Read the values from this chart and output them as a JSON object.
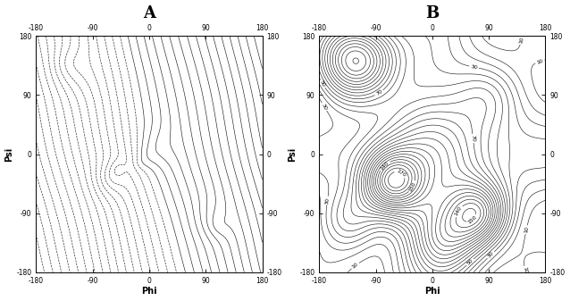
{
  "title_A": "A",
  "title_B": "B",
  "xlabel": "Phi",
  "ylabel": "Psi",
  "xlim": [
    -180,
    180
  ],
  "ylim": [
    -180,
    180
  ],
  "xticks": [
    -180,
    -90,
    0,
    90,
    180
  ],
  "yticks": [
    -180,
    -90,
    0,
    90,
    180
  ],
  "background_color": "#ffffff",
  "contour_color": "#222222",
  "n_levels_A": 35,
  "n_levels_B": 25,
  "figsize": [
    6.38,
    3.37
  ],
  "dpi": 100,
  "tick_fontsize": 5.5,
  "label_fontsize": 7,
  "title_fontsize": 13
}
